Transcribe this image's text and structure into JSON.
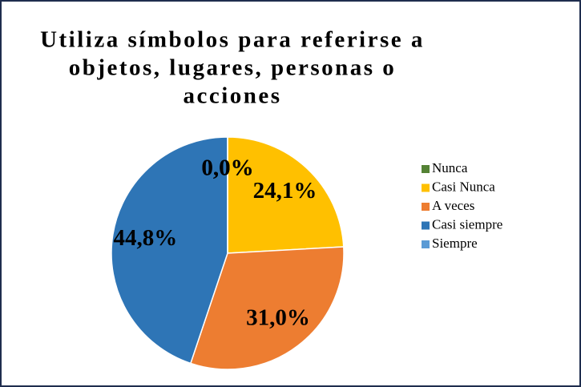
{
  "chart_data": {
    "type": "pie",
    "title": [
      "Utiliza símbolos para referirse a",
      "objetos, lugares, personas o",
      "acciones"
    ],
    "categories": [
      "Nunca",
      "Casi Nunca",
      "A veces",
      "Casi siempre",
      "Siempre"
    ],
    "values": [
      0.0,
      24.1,
      31.0,
      44.8,
      0.0
    ],
    "value_labels": [
      "0,0%",
      "24,1%",
      "31,0%",
      "44,8%",
      "0,0%"
    ],
    "colors": [
      "#548235",
      "#ffc000",
      "#ed7d31",
      "#2e75b6",
      "#5b9bd5"
    ],
    "legend": "right"
  }
}
